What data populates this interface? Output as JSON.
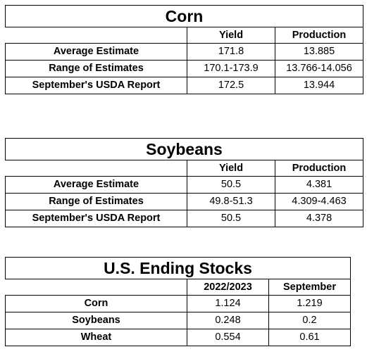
{
  "tables": [
    {
      "title": "Corn",
      "headers": [
        "",
        "Yield",
        "Production"
      ],
      "rows": [
        {
          "label": "Average Estimate",
          "cells": [
            "171.8",
            "13.885"
          ]
        },
        {
          "label": "Range of Estimates",
          "cells": [
            "170.1-173.9",
            "13.766-14.056"
          ]
        },
        {
          "label": "September's USDA Report",
          "cells": [
            "172.5",
            "13.944"
          ]
        }
      ]
    },
    {
      "title": "Soybeans",
      "headers": [
        "",
        "Yield",
        "Production"
      ],
      "rows": [
        {
          "label": "Average Estimate",
          "cells": [
            "50.5",
            "4.381"
          ]
        },
        {
          "label": "Range of Estimates",
          "cells": [
            "49.8-51.3",
            "4.309-4.463"
          ]
        },
        {
          "label": "September's USDA Report",
          "cells": [
            "50.5",
            "4.378"
          ]
        }
      ]
    },
    {
      "title": "U.S. Ending Stocks",
      "headers": [
        "",
        "2022/2023",
        "September"
      ],
      "rows": [
        {
          "label": "Corn",
          "cells": [
            "1.124",
            "1.219"
          ]
        },
        {
          "label": "Soybeans",
          "cells": [
            "0.248",
            "0.2"
          ]
        },
        {
          "label": "Wheat",
          "cells": [
            "0.554",
            "0.61"
          ]
        }
      ]
    }
  ]
}
